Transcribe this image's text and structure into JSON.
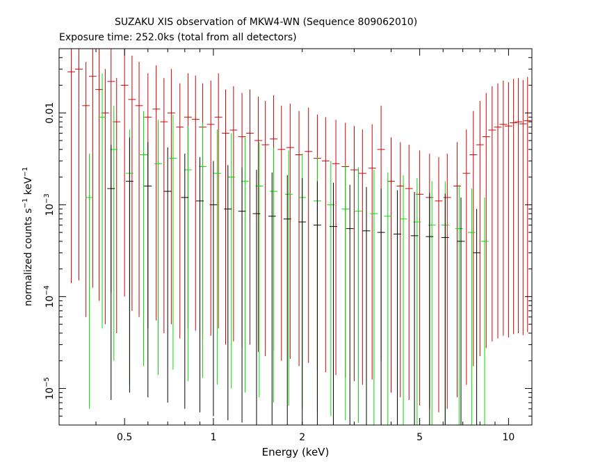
{
  "header": {
    "title": "SUZAKU XIS observation of MKW4-WN (Sequence 809062010)",
    "subtitle": "Exposure time: 252.0ks (total from all detectors)"
  },
  "chart_data": {
    "type": "scatter",
    "title": "SUZAKU XIS observation of MKW4-WN (Sequence 809062010)",
    "subtitle": "Exposure time: 252.0ks (total from all detectors)",
    "xlabel": "Energy (keV)",
    "ylabel_parts": {
      "a": "normalized counts s",
      "a_sup": "−1",
      "b": " keV",
      "b_sup": "−1"
    },
    "xscale": "log",
    "yscale": "log",
    "xlim": [
      0.3,
      12
    ],
    "ylim": [
      4e-06,
      0.05
    ],
    "x_ticks": [
      {
        "value": 0.5,
        "label": "0.5"
      },
      {
        "value": 1,
        "label": "1"
      },
      {
        "value": 2,
        "label": "2"
      },
      {
        "value": 5,
        "label": "5"
      },
      {
        "value": 10,
        "label": "10"
      }
    ],
    "y_ticks": [
      {
        "value": 0.01,
        "base": "0.01",
        "exp": ""
      },
      {
        "value": 0.001,
        "base": "10",
        "exp": "−3"
      },
      {
        "value": 0.0001,
        "base": "10",
        "exp": "−4"
      },
      {
        "value": 1e-05,
        "base": "10",
        "exp": "−5"
      }
    ],
    "series": [
      {
        "color": "#cc0000",
        "points": [
          [
            0.33,
            0.028
          ],
          [
            0.35,
            0.03
          ],
          [
            0.37,
            0.012
          ],
          [
            0.39,
            0.025
          ],
          [
            0.41,
            0.018
          ],
          [
            0.43,
            0.01
          ],
          [
            0.45,
            0.022
          ],
          [
            0.47,
            0.008
          ],
          [
            0.5,
            0.02
          ],
          [
            0.53,
            0.014
          ],
          [
            0.56,
            0.012
          ],
          [
            0.6,
            0.009
          ],
          [
            0.64,
            0.011
          ],
          [
            0.68,
            0.008
          ],
          [
            0.72,
            0.01
          ],
          [
            0.77,
            0.007
          ],
          [
            0.82,
            0.009
          ],
          [
            0.87,
            0.0085
          ],
          [
            0.92,
            0.007
          ],
          [
            0.98,
            0.0075
          ],
          [
            1.04,
            0.009
          ],
          [
            1.1,
            0.006
          ],
          [
            1.17,
            0.0065
          ],
          [
            1.25,
            0.0055
          ],
          [
            1.33,
            0.006
          ],
          [
            1.42,
            0.005
          ],
          [
            1.5,
            0.0045
          ],
          [
            1.6,
            0.0052
          ],
          [
            1.7,
            0.004
          ],
          [
            1.82,
            0.0042
          ],
          [
            1.95,
            0.0035
          ],
          [
            2.1,
            0.0038
          ],
          [
            2.25,
            0.0032
          ],
          [
            2.4,
            0.003
          ],
          [
            2.6,
            0.0028
          ],
          [
            2.8,
            0.0026
          ],
          [
            3.0,
            0.0024
          ],
          [
            3.2,
            0.0022
          ],
          [
            3.45,
            0.0025
          ],
          [
            3.7,
            0.004
          ],
          [
            4.0,
            0.0018
          ],
          [
            4.3,
            0.0016
          ],
          [
            4.6,
            0.0015
          ],
          [
            5.0,
            0.0013
          ],
          [
            5.4,
            0.0012
          ],
          [
            5.8,
            0.0011
          ],
          [
            6.2,
            0.0012
          ],
          [
            6.7,
            0.0016
          ],
          [
            7.2,
            0.0022
          ],
          [
            7.6,
            0.0035
          ],
          [
            8.0,
            0.0045
          ],
          [
            8.4,
            0.0055
          ],
          [
            8.8,
            0.0065
          ],
          [
            9.2,
            0.007
          ],
          [
            9.6,
            0.0075
          ],
          [
            10.0,
            0.0072
          ],
          [
            10.4,
            0.0078
          ],
          [
            10.8,
            0.008
          ],
          [
            11.2,
            0.0076
          ],
          [
            11.6,
            0.0082
          ]
        ]
      },
      {
        "color": "#00dd00",
        "points": [
          [
            0.38,
            0.0012
          ],
          [
            0.42,
            0.009
          ],
          [
            0.46,
            0.004
          ],
          [
            0.52,
            0.0022
          ],
          [
            0.58,
            0.0035
          ],
          [
            0.65,
            0.0028
          ],
          [
            0.73,
            0.0032
          ],
          [
            0.82,
            0.0024
          ],
          [
            0.92,
            0.0026
          ],
          [
            1.03,
            0.0022
          ],
          [
            1.15,
            0.002
          ],
          [
            1.28,
            0.0018
          ],
          [
            1.43,
            0.0016
          ],
          [
            1.6,
            0.0014
          ],
          [
            1.8,
            0.0013
          ],
          [
            2.0,
            0.0012
          ],
          [
            2.25,
            0.0011
          ],
          [
            2.5,
            0.001
          ],
          [
            2.8,
            0.0009
          ],
          [
            3.1,
            0.00085
          ],
          [
            3.5,
            0.0008
          ],
          [
            3.9,
            0.00075
          ],
          [
            4.4,
            0.0007
          ],
          [
            4.9,
            0.00065
          ],
          [
            5.5,
            0.0006
          ],
          [
            6.1,
            0.0006
          ],
          [
            6.8,
            0.00055
          ],
          [
            7.5,
            0.0005
          ],
          [
            8.3,
            0.0004
          ]
        ]
      },
      {
        "color": "#000000",
        "points": [
          [
            0.45,
            0.0015
          ],
          [
            0.52,
            0.0018
          ],
          [
            0.6,
            0.0016
          ],
          [
            0.7,
            0.0014
          ],
          [
            0.8,
            0.0012
          ],
          [
            0.9,
            0.0011
          ],
          [
            1.0,
            0.001
          ],
          [
            1.12,
            0.0009
          ],
          [
            1.25,
            0.00085
          ],
          [
            1.4,
            0.0008
          ],
          [
            1.58,
            0.00075
          ],
          [
            1.78,
            0.0007
          ],
          [
            2.0,
            0.00065
          ],
          [
            2.25,
            0.0006
          ],
          [
            2.55,
            0.00058
          ],
          [
            2.9,
            0.00055
          ],
          [
            3.3,
            0.00052
          ],
          [
            3.7,
            0.0005
          ],
          [
            4.2,
            0.00048
          ],
          [
            4.8,
            0.00046
          ],
          [
            5.4,
            0.00045
          ],
          [
            6.1,
            0.00044
          ],
          [
            6.9,
            0.0004
          ],
          [
            7.8,
            0.0003
          ]
        ]
      }
    ]
  }
}
